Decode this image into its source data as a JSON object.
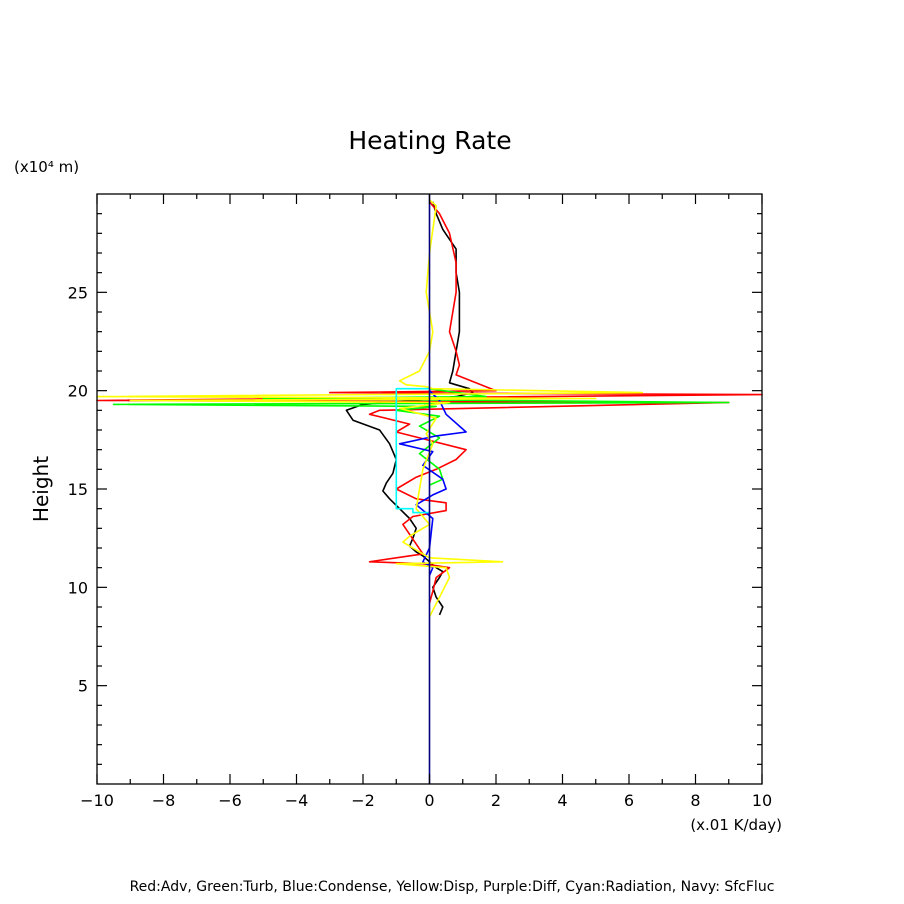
{
  "chart_data": {
    "type": "line",
    "title": "Heating Rate",
    "xlabel": "(x.01 K/day)",
    "ylabel": "Height",
    "yunit": "(x10⁴ m)",
    "xlim": [
      -10,
      10
    ],
    "ylim": [
      0,
      30
    ],
    "xticks": [
      "−10",
      "−8",
      "−6",
      "−4",
      "−2",
      "0",
      "2",
      "4",
      "6",
      "8",
      "10"
    ],
    "yticks": [
      "5",
      "10",
      "15",
      "20",
      "25"
    ],
    "legend_text": "Red:Adv, Green:Turb, Blue:Condense, Yellow:Disp, Purple:Diff, Cyan:Radiation, Navy: SfcFluc",
    "series": [
      {
        "color": "#000000",
        "x": [
          0.1,
          0.2,
          0.4,
          0.8,
          0.8,
          0.9,
          0.9,
          0.8,
          0.7,
          0.6,
          0.8,
          1.2,
          1.3,
          0.8,
          -0.4,
          -2.0,
          -2.5,
          -2.3,
          -1.5,
          -1.2,
          -1.0,
          -1.1,
          -1.3,
          -1.4,
          -1.2,
          -0.9,
          -0.6,
          -0.4,
          -0.5,
          -0.6,
          -0.4,
          -0.2,
          0.0,
          0.2,
          0.4,
          0.3,
          0.1,
          0.2,
          0.4,
          0.3
        ],
        "y": [
          29.6,
          29.0,
          28.2,
          27.2,
          26.0,
          25.0,
          23.0,
          22.0,
          21.0,
          20.4,
          20.3,
          20.1,
          19.9,
          19.7,
          19.5,
          19.3,
          19.0,
          18.5,
          18.0,
          17.3,
          16.5,
          15.8,
          15.3,
          14.9,
          14.5,
          14.0,
          13.5,
          13.0,
          12.5,
          12.1,
          11.8,
          11.6,
          11.3,
          11.0,
          10.8,
          10.5,
          10.0,
          9.5,
          9.0,
          8.6
        ]
      },
      {
        "color": "#ff0000",
        "x": [
          0.0,
          0.3,
          0.6,
          0.8,
          0.8,
          0.6,
          0.8,
          0.9,
          0.8,
          2.0,
          -3.0,
          10.5,
          -10.5,
          9.0,
          -1.5,
          -1.8,
          -0.6,
          -1.0,
          -0.3,
          1.1,
          0.8,
          0.2,
          -0.4,
          -1.0,
          -0.4,
          0.5,
          0.5,
          -0.5,
          -0.8,
          -0.2,
          -1.8,
          -0.2,
          0.6,
          0.2,
          0.1,
          0.0
        ],
        "y": [
          29.6,
          29.0,
          28.0,
          26.5,
          25.0,
          23.0,
          22.0,
          21.3,
          20.8,
          20.0,
          19.9,
          19.8,
          19.5,
          19.4,
          19.0,
          18.8,
          18.3,
          17.9,
          17.6,
          17.0,
          16.5,
          16.0,
          15.6,
          15.0,
          14.5,
          14.3,
          13.9,
          13.6,
          13.2,
          11.7,
          11.3,
          11.2,
          11.0,
          10.5,
          9.8,
          9.2
        ]
      },
      {
        "color": "#00ff00",
        "x": [
          0.0,
          1.7,
          -5.0,
          9.0,
          -9.5,
          0.2,
          -1.0,
          0.3,
          -0.3,
          0.3,
          -0.3,
          0.3,
          0.4,
          0.0
        ],
        "y": [
          20.1,
          19.7,
          19.6,
          19.4,
          19.3,
          19.2,
          19.0,
          18.7,
          18.2,
          17.6,
          16.8,
          16.0,
          15.5,
          15.2
        ]
      },
      {
        "color": "#0000ff",
        "x": [
          0.0,
          0.3,
          0.5,
          1.1,
          0.2,
          -0.9,
          0.1,
          -0.2,
          0.4,
          0.5,
          0.1,
          -0.2,
          -0.4,
          0.1,
          0.0,
          -0.2,
          0.1,
          0.0
        ],
        "y": [
          20.0,
          19.5,
          18.8,
          17.9,
          17.7,
          17.3,
          16.9,
          16.2,
          15.5,
          15.0,
          14.7,
          14.4,
          14.2,
          13.5,
          12.0,
          11.3,
          11.0,
          10.6
        ]
      },
      {
        "color": "#ffff00",
        "x": [
          0.0,
          0.2,
          0.0,
          -0.1,
          0.1,
          0.0,
          -0.3,
          -0.9,
          -0.7,
          -0.1,
          0.1,
          6.4,
          -10.5,
          5.0,
          -9.0,
          0.6,
          -0.9,
          0.2,
          -0.1,
          0.1,
          -0.2,
          -0.4,
          0.0,
          -0.6,
          -0.8,
          -0.3,
          0.0,
          2.2,
          -1.0,
          0.5,
          0.6,
          0.3,
          0.0
        ],
        "y": [
          29.7,
          29.4,
          27.0,
          25.0,
          23.0,
          22.0,
          21.0,
          20.5,
          20.3,
          20.2,
          20.1,
          19.9,
          19.7,
          19.6,
          19.5,
          19.4,
          19.1,
          18.6,
          17.8,
          17.3,
          16.0,
          14.0,
          13.2,
          12.6,
          12.3,
          11.8,
          11.5,
          11.3,
          11.2,
          11.0,
          10.5,
          9.5,
          8.5
        ]
      },
      {
        "color": "#00ffff",
        "x": [
          0.0,
          -1.0,
          -1.0,
          -0.5,
          -0.5,
          0.0
        ],
        "y": [
          20.1,
          20.1,
          14.0,
          14.0,
          13.8,
          13.8
        ]
      }
    ],
    "navy_line": {
      "color": "#000080",
      "x": 0,
      "y": [
        0,
        30
      ]
    },
    "grid": false,
    "legend_placement": "bottom"
  }
}
